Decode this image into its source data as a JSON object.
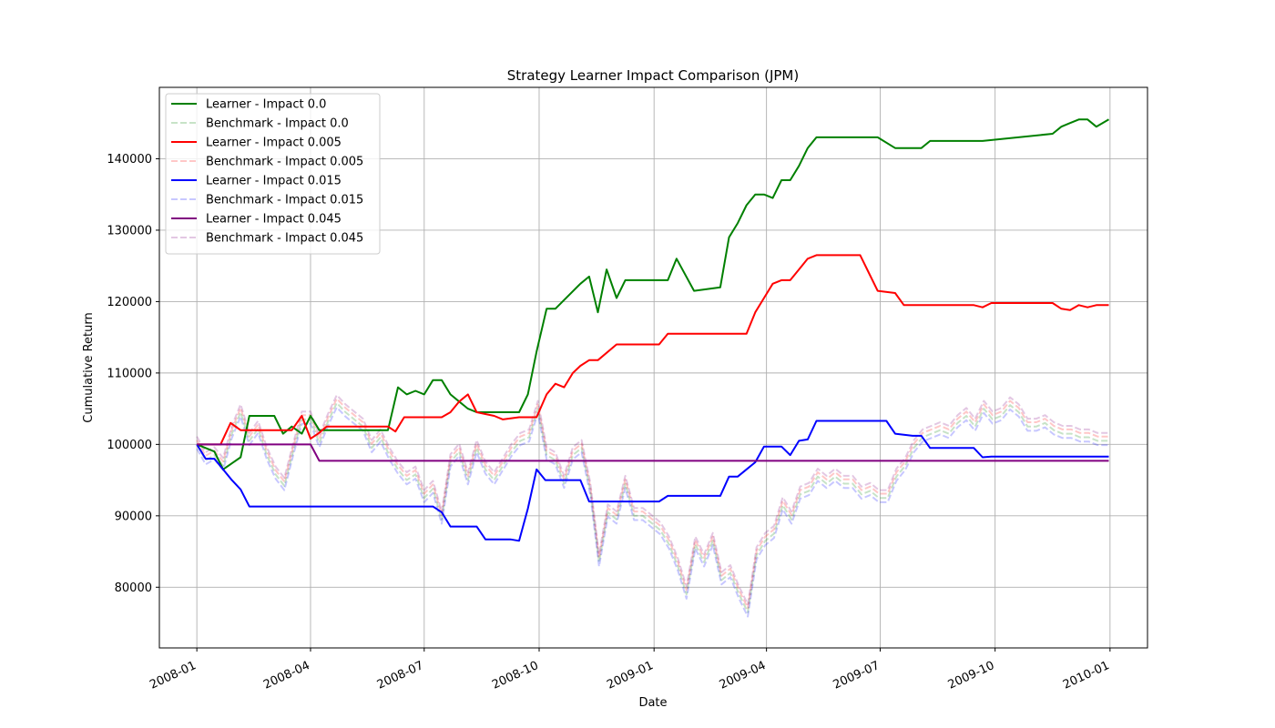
{
  "chart_data": {
    "type": "line",
    "title": "Strategy Learner Impact Comparison (JPM)",
    "xlabel": "Date",
    "ylabel": "Cumulative Return",
    "x_type": "date",
    "xlim": [
      "2007-12-02",
      "2010-01-31"
    ],
    "ylim": [
      71500,
      150000
    ],
    "x_ticks": [
      "2008-01-01",
      "2008-04-01",
      "2008-07-01",
      "2008-10-01",
      "2009-01-01",
      "2009-04-01",
      "2009-07-01",
      "2009-10-01",
      "2010-01-01"
    ],
    "x_tick_labels": [
      "2008-01",
      "2008-04",
      "2008-07",
      "2008-10",
      "2009-01",
      "2009-04",
      "2009-07",
      "2009-10",
      "2010-01"
    ],
    "y_ticks": [
      80000,
      90000,
      100000,
      110000,
      120000,
      130000,
      140000
    ],
    "y_tick_labels": [
      "80000",
      "90000",
      "100000",
      "110000",
      "120000",
      "130000",
      "140000"
    ],
    "grid": true,
    "legend_position": "upper-left",
    "benchmark": {
      "x": [
        "2008-01-01",
        "2008-01-08",
        "2008-01-15",
        "2008-01-22",
        "2008-01-29",
        "2008-02-05",
        "2008-02-12",
        "2008-02-19",
        "2008-02-26",
        "2008-03-04",
        "2008-03-11",
        "2008-03-18",
        "2008-03-25",
        "2008-04-01",
        "2008-04-08",
        "2008-04-15",
        "2008-04-22",
        "2008-04-29",
        "2008-05-06",
        "2008-05-13",
        "2008-05-20",
        "2008-05-27",
        "2008-06-03",
        "2008-06-10",
        "2008-06-17",
        "2008-06-24",
        "2008-07-01",
        "2008-07-08",
        "2008-07-15",
        "2008-07-22",
        "2008-07-29",
        "2008-08-05",
        "2008-08-12",
        "2008-08-19",
        "2008-08-26",
        "2008-09-02",
        "2008-09-09",
        "2008-09-16",
        "2008-09-23",
        "2008-09-30",
        "2008-10-07",
        "2008-10-14",
        "2008-10-21",
        "2008-10-28",
        "2008-11-04",
        "2008-11-11",
        "2008-11-18",
        "2008-11-25",
        "2008-12-02",
        "2008-12-09",
        "2008-12-16",
        "2008-12-23",
        "2008-12-30",
        "2009-01-06",
        "2009-01-13",
        "2009-01-20",
        "2009-01-27",
        "2009-02-03",
        "2009-02-10",
        "2009-02-17",
        "2009-02-24",
        "2009-03-03",
        "2009-03-10",
        "2009-03-17",
        "2009-03-24",
        "2009-03-31",
        "2009-04-07",
        "2009-04-14",
        "2009-04-21",
        "2009-04-28",
        "2009-05-05",
        "2009-05-12",
        "2009-05-19",
        "2009-05-26",
        "2009-06-02",
        "2009-06-09",
        "2009-06-16",
        "2009-06-23",
        "2009-06-30",
        "2009-07-07",
        "2009-07-14",
        "2009-07-21",
        "2009-07-28",
        "2009-08-04",
        "2009-08-11",
        "2009-08-18",
        "2009-08-25",
        "2009-09-01",
        "2009-09-08",
        "2009-09-15",
        "2009-09-22",
        "2009-09-29",
        "2009-10-06",
        "2009-10-13",
        "2009-10-20",
        "2009-10-27",
        "2009-11-03",
        "2009-11-10",
        "2009-11-17",
        "2009-11-24",
        "2009-12-01",
        "2009-12-08",
        "2009-12-15",
        "2009-12-22",
        "2009-12-31"
      ],
      "y": [
        100000,
        97800,
        98500,
        97000,
        101500,
        104500,
        100500,
        102200,
        98500,
        95800,
        94200,
        99000,
        103500,
        103500,
        100200,
        103200,
        105800,
        104500,
        103500,
        102500,
        99500,
        101000,
        98500,
        96500,
        95000,
        95800,
        92500,
        93800,
        89500,
        97500,
        99000,
        95000,
        99500,
        96500,
        95000,
        97000,
        99000,
        100500,
        101000,
        105000,
        98500,
        97800,
        94500,
        98500,
        99500,
        93500,
        83500,
        90500,
        89500,
        94500,
        90000,
        90000,
        89000,
        88000,
        86000,
        83000,
        79000,
        86000,
        83500,
        86500,
        81000,
        82000,
        79000,
        76500,
        84500,
        86500,
        87500,
        91500,
        89500,
        93000,
        93500,
        95500,
        94500,
        95500,
        94500,
        94500,
        93000,
        93500,
        92500,
        92500,
        95500,
        97000,
        99500,
        101000,
        101500,
        102000,
        101500,
        103000,
        104000,
        102500,
        105000,
        103500,
        104000,
        105500,
        104500,
        102500,
        102500,
        103000,
        102000,
        101500,
        101500,
        101000,
        101000,
        100500,
        100500
      ]
    },
    "benchmark_offsets": [
      0,
      600,
      -600,
      1100
    ],
    "series": [
      {
        "name": "Learner - Impact 0.0",
        "color": "#008000",
        "style": "solid",
        "x": [
          "2008-01-01",
          "2008-01-15",
          "2008-01-22",
          "2008-02-05",
          "2008-02-12",
          "2008-03-03",
          "2008-03-10",
          "2008-03-17",
          "2008-03-25",
          "2008-04-01",
          "2008-04-08",
          "2008-06-02",
          "2008-06-10",
          "2008-06-17",
          "2008-06-24",
          "2008-07-01",
          "2008-07-08",
          "2008-07-15",
          "2008-07-22",
          "2008-07-29",
          "2008-08-05",
          "2008-08-12",
          "2008-08-19",
          "2008-09-15",
          "2008-09-22",
          "2008-09-29",
          "2008-10-07",
          "2008-10-14",
          "2008-11-03",
          "2008-11-10",
          "2008-11-17",
          "2008-11-24",
          "2008-12-02",
          "2008-12-09",
          "2009-01-12",
          "2009-01-19",
          "2009-02-02",
          "2009-02-23",
          "2009-03-02",
          "2009-03-09",
          "2009-03-16",
          "2009-03-23",
          "2009-03-30",
          "2009-04-06",
          "2009-04-13",
          "2009-04-20",
          "2009-04-27",
          "2009-05-04",
          "2009-05-11",
          "2009-06-29",
          "2009-07-13",
          "2009-08-03",
          "2009-08-10",
          "2009-09-21",
          "2009-11-16",
          "2009-11-23",
          "2009-11-30",
          "2009-12-07",
          "2009-12-14",
          "2009-12-21",
          "2009-12-31"
        ],
        "y": [
          100000,
          99000,
          96500,
          98200,
          104000,
          104000,
          101500,
          102500,
          101500,
          104000,
          102000,
          102000,
          108000,
          107000,
          107500,
          107000,
          109000,
          109000,
          107000,
          106000,
          105000,
          104500,
          104500,
          104500,
          107000,
          113000,
          119000,
          119000,
          122500,
          123500,
          118500,
          124500,
          120500,
          123000,
          123000,
          126000,
          121500,
          122000,
          129000,
          131000,
          133500,
          135000,
          135000,
          134500,
          137000,
          137000,
          139000,
          141500,
          143000,
          143000,
          141500,
          141500,
          142500,
          142500,
          143500,
          144500,
          145000,
          145500,
          145500,
          144500,
          145500
        ]
      },
      {
        "name": "Benchmark - Impact 0.0",
        "color": "#008000",
        "style": "benchmark",
        "offset_index": 0
      },
      {
        "name": "Learner - Impact 0.005",
        "color": "#ff0000",
        "style": "solid",
        "x": [
          "2008-01-01",
          "2008-01-20",
          "2008-01-28",
          "2008-02-05",
          "2008-02-12",
          "2008-03-17",
          "2008-03-25",
          "2008-04-01",
          "2008-04-07",
          "2008-04-14",
          "2008-06-02",
          "2008-06-08",
          "2008-06-15",
          "2008-07-15",
          "2008-07-22",
          "2008-07-29",
          "2008-08-05",
          "2008-08-12",
          "2008-08-26",
          "2008-09-02",
          "2008-09-15",
          "2008-09-22",
          "2008-09-29",
          "2008-10-07",
          "2008-10-14",
          "2008-10-21",
          "2008-10-28",
          "2008-11-03",
          "2008-11-10",
          "2008-11-17",
          "2008-12-02",
          "2008-12-09",
          "2009-01-05",
          "2009-01-12",
          "2009-03-16",
          "2009-03-23",
          "2009-03-30",
          "2009-04-06",
          "2009-04-13",
          "2009-04-20",
          "2009-04-27",
          "2009-05-04",
          "2009-05-11",
          "2009-06-15",
          "2009-06-22",
          "2009-06-29",
          "2009-07-13",
          "2009-07-20",
          "2009-09-14",
          "2009-09-21",
          "2009-09-28",
          "2009-11-16",
          "2009-11-23",
          "2009-11-30",
          "2009-12-07",
          "2009-12-14",
          "2009-12-21",
          "2009-12-31"
        ],
        "y": [
          100000,
          100000,
          103000,
          102000,
          102000,
          102000,
          104000,
          100800,
          101500,
          102500,
          102500,
          101800,
          103800,
          103800,
          104500,
          106000,
          107000,
          104500,
          104000,
          103500,
          103800,
          103800,
          103800,
          107000,
          108500,
          108000,
          110000,
          111000,
          111800,
          111800,
          114000,
          114000,
          114000,
          115500,
          115500,
          118500,
          120500,
          122500,
          123000,
          123000,
          124500,
          126000,
          126500,
          126500,
          124000,
          121500,
          121200,
          119500,
          119500,
          119200,
          119800,
          119800,
          119000,
          118800,
          119500,
          119200,
          119500,
          119500
        ]
      },
      {
        "name": "Benchmark - Impact 0.005",
        "color": "#ff0000",
        "style": "benchmark",
        "offset_index": 1
      },
      {
        "name": "Learner - Impact 0.015",
        "color": "#0000ff",
        "style": "solid",
        "x": [
          "2008-01-01",
          "2008-01-08",
          "2008-01-15",
          "2008-01-29",
          "2008-02-05",
          "2008-02-12",
          "2008-03-31",
          "2008-04-07",
          "2008-07-01",
          "2008-07-08",
          "2008-07-15",
          "2008-07-22",
          "2008-08-12",
          "2008-08-19",
          "2008-09-08",
          "2008-09-15",
          "2008-09-22",
          "2008-09-29",
          "2008-10-06",
          "2008-10-13",
          "2008-11-03",
          "2008-11-10",
          "2008-12-08",
          "2009-01-05",
          "2009-01-12",
          "2009-02-23",
          "2009-03-02",
          "2009-03-09",
          "2009-03-16",
          "2009-03-23",
          "2009-03-30",
          "2009-04-06",
          "2009-04-13",
          "2009-04-20",
          "2009-04-27",
          "2009-05-04",
          "2009-05-11",
          "2009-06-29",
          "2009-07-06",
          "2009-07-13",
          "2009-07-27",
          "2009-08-03",
          "2009-08-10",
          "2009-09-14",
          "2009-09-21",
          "2009-09-28",
          "2009-12-31"
        ],
        "y": [
          100000,
          98000,
          98000,
          95000,
          93700,
          91300,
          91300,
          91300,
          91300,
          91300,
          90500,
          88500,
          88500,
          86700,
          86700,
          86500,
          91000,
          96500,
          95000,
          95000,
          95000,
          92000,
          92000,
          92000,
          92800,
          92800,
          95500,
          95500,
          96500,
          97500,
          99700,
          99700,
          99700,
          98500,
          100500,
          100700,
          103300,
          103300,
          103300,
          101500,
          101200,
          101200,
          99500,
          99500,
          98200,
          98300,
          98300
        ]
      },
      {
        "name": "Benchmark - Impact 0.015",
        "color": "#0000ff",
        "style": "benchmark",
        "offset_index": 2
      },
      {
        "name": "Learner - Impact 0.045",
        "color": "#800080",
        "style": "solid",
        "x": [
          "2008-01-01",
          "2008-01-22",
          "2008-01-29",
          "2008-04-01",
          "2008-04-08",
          "2009-12-31"
        ],
        "y": [
          100000,
          100000,
          100000,
          100000,
          97700,
          97700
        ]
      },
      {
        "name": "Benchmark - Impact 0.045",
        "color": "#800080",
        "style": "benchmark",
        "offset_index": 3
      }
    ]
  }
}
